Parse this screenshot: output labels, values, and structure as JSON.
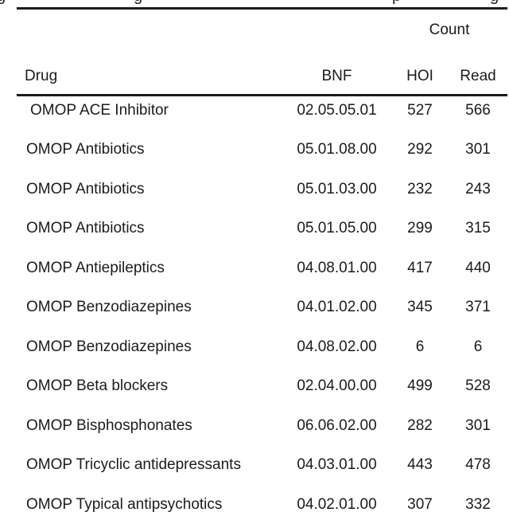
{
  "page": {
    "background": "#ffffff",
    "text_color": "#1b1b1b",
    "rule_color": "#1c1c1c"
  },
  "caption_fragments": {
    "letters": [
      "g",
      "g",
      "p",
      "g"
    ]
  },
  "table": {
    "group_header": {
      "label": "Count",
      "spans_columns": [
        "HOI",
        "Read"
      ]
    },
    "columns": [
      "Drug",
      "BNF",
      "HOI",
      "Read"
    ],
    "rows": [
      {
        "drug": "OMOP ACE Inhibitor",
        "bnf": "02.05.05.01",
        "hoi": "527",
        "read": "566"
      },
      {
        "drug": "OMOP Antibiotics",
        "bnf": "05.01.08.00",
        "hoi": "292",
        "read": "301"
      },
      {
        "drug": "OMOP Antibiotics",
        "bnf": "05.01.03.00",
        "hoi": "232",
        "read": "243"
      },
      {
        "drug": "OMOP Antibiotics",
        "bnf": "05.01.05.00",
        "hoi": "299",
        "read": "315"
      },
      {
        "drug": "OMOP Antiepileptics",
        "bnf": "04.08.01.00",
        "hoi": "417",
        "read": "440"
      },
      {
        "drug": "OMOP Benzodiazepines",
        "bnf": "04.01.02.00",
        "hoi": "345",
        "read": "371"
      },
      {
        "drug": "OMOP Benzodiazepines",
        "bnf": "04.08.02.00",
        "hoi": "6",
        "read": "6"
      },
      {
        "drug": "OMOP Beta blockers",
        "bnf": "02.04.00.00",
        "hoi": "499",
        "read": "528"
      },
      {
        "drug": "OMOP Bisphosphonates",
        "bnf": "06.06.02.00",
        "hoi": "282",
        "read": "301"
      },
      {
        "drug": "OMOP Tricyclic antidepressants",
        "bnf": "04.03.01.00",
        "hoi": "443",
        "read": "478"
      },
      {
        "drug": "OMOP Typical antipsychotics",
        "bnf": "04.02.01.00",
        "hoi": "307",
        "read": "332"
      }
    ]
  }
}
